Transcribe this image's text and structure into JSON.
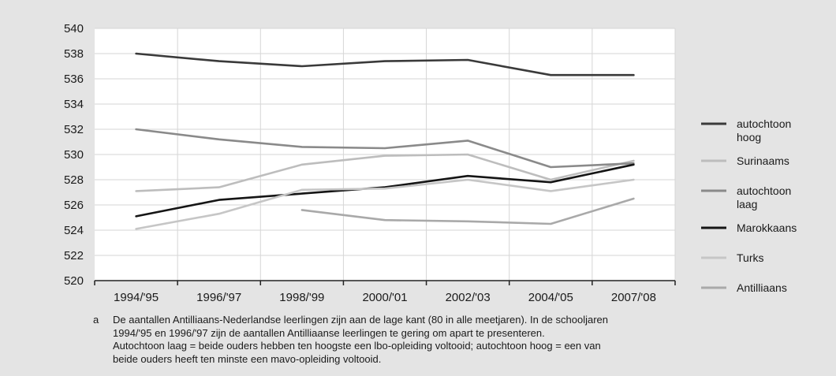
{
  "chart_data": {
    "type": "line",
    "categories": [
      "1994/'95",
      "1996/'97",
      "1998/'99",
      "2000/'01",
      "2002/'03",
      "2004/'05",
      "2007/'08"
    ],
    "ylim": [
      520,
      540
    ],
    "yticks": [
      520,
      522,
      524,
      526,
      528,
      530,
      532,
      534,
      536,
      538,
      540
    ],
    "grid": true,
    "legend_position": "right",
    "series": [
      {
        "name": "autochtoon hoog",
        "name_lines": [
          "autochtoon",
          "hoog"
        ],
        "color": "#3a3a3a",
        "values": [
          538.0,
          537.4,
          537.0,
          537.4,
          537.5,
          536.3,
          536.3
        ]
      },
      {
        "name": "Surinaams",
        "name_lines": [
          "Surinaams"
        ],
        "color": "#bdbdbd",
        "values": [
          527.1,
          527.4,
          529.2,
          529.9,
          530.0,
          528.0,
          529.5
        ]
      },
      {
        "name": "autochtoon laag",
        "name_lines": [
          "autochtoon",
          "laag"
        ],
        "color": "#8a8a8a",
        "values": [
          532.0,
          531.2,
          530.6,
          530.5,
          531.1,
          529.0,
          529.3
        ]
      },
      {
        "name": "Marokkaans",
        "name_lines": [
          "Marokkaans"
        ],
        "color": "#151515",
        "values": [
          525.1,
          526.4,
          526.9,
          527.4,
          528.3,
          527.8,
          529.2
        ]
      },
      {
        "name": "Turks",
        "name_lines": [
          "Turks"
        ],
        "color": "#c6c6c6",
        "values": [
          524.1,
          525.3,
          527.2,
          527.3,
          528.0,
          527.1,
          528.0
        ]
      },
      {
        "name": "Antilliaans",
        "name_lines": [
          "Antilliaans"
        ],
        "color": "#a9a9a9",
        "values": [
          null,
          null,
          525.6,
          524.8,
          524.7,
          524.5,
          526.5
        ]
      }
    ]
  },
  "footnote": {
    "marker": "a",
    "lines": [
      "De aantallen Antilliaans-Nederlandse leerlingen zijn aan de lage kant (80 in alle meetjaren). In de schooljaren",
      "1994/'95 en 1996/'97 zijn de aantallen Antilliaanse leerlingen te gering om apart te presenteren.",
      "Autochtoon laag = beide ouders hebben ten hoogste een lbo-opleiding voltooid; autochtoon hoog = een van",
      "beide ouders heeft ten minste een mavo-opleiding voltooid."
    ]
  }
}
